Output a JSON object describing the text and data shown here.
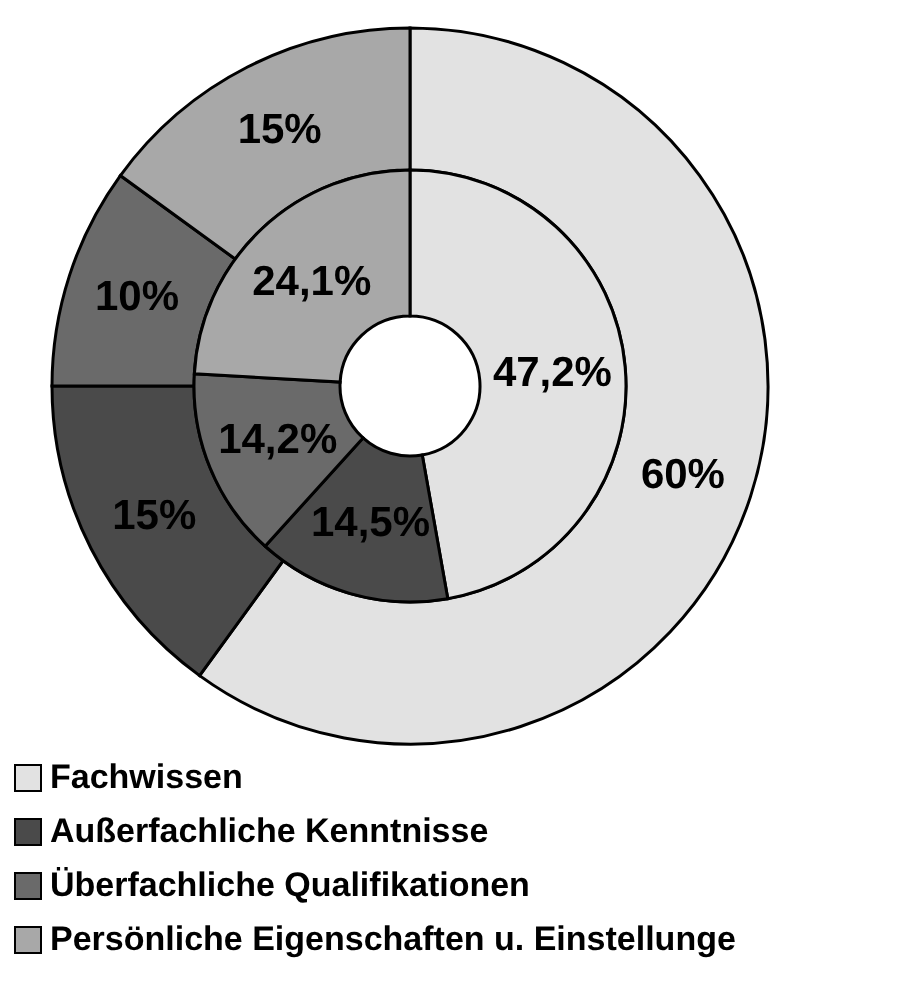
{
  "chart_data": {
    "type": "donut",
    "categories": [
      "Fachwissen",
      "Außerfachliche Kenntnisse",
      "Überfachliche Qualifikationen",
      "Persönliche Eigenschaften u. Einstellunge"
    ],
    "colors": [
      "#e2e2e2",
      "#4a4a4a",
      "#6a6a6a",
      "#a8a8a8"
    ],
    "series": [
      {
        "values": [
          60,
          15,
          10,
          15
        ],
        "value_labels": [
          "60%",
          "15%",
          "10%",
          "15%"
        ]
      },
      {
        "values": [
          47.2,
          14.5,
          14.2,
          24.1
        ],
        "value_labels": [
          "47,2%",
          "14,5%",
          "14,2%",
          "24,1%"
        ]
      }
    ],
    "legend": "bottom"
  }
}
